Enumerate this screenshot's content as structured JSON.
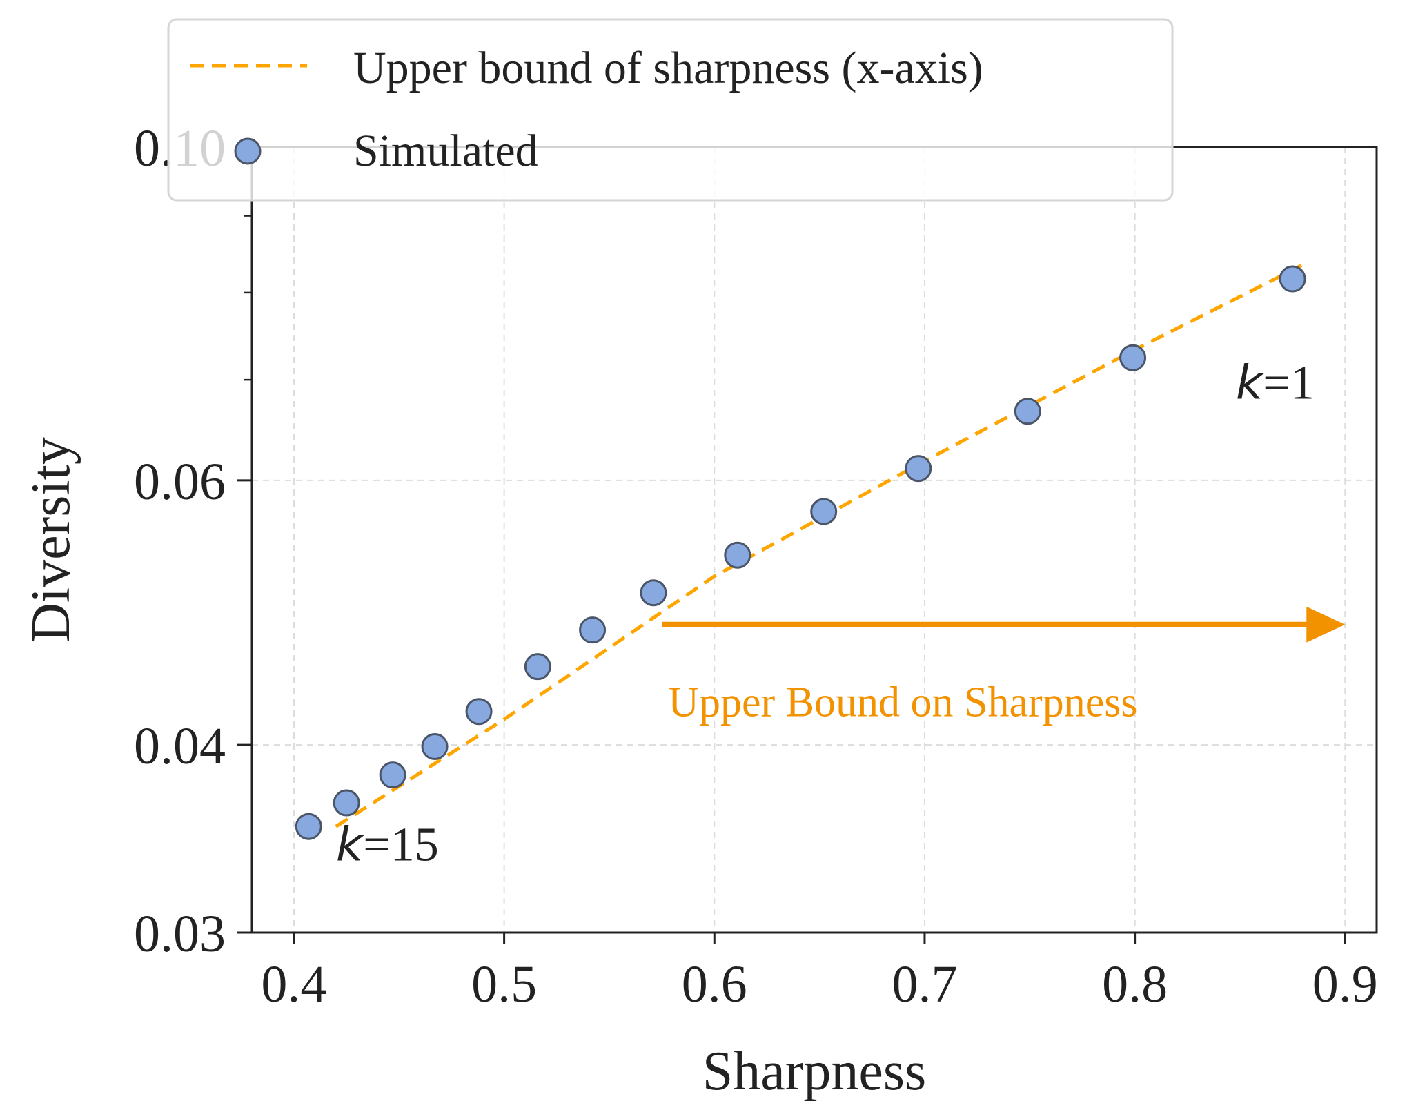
{
  "chart_data": {
    "type": "scatter",
    "title": "",
    "xlabel": "Sharpness",
    "ylabel": "Diversity",
    "xlim": [
      0.38,
      0.915
    ],
    "y_scale": "log",
    "ylim": [
      0.03,
      0.1
    ],
    "xticks": [
      0.4,
      0.5,
      0.6,
      0.7,
      0.8,
      0.9
    ],
    "xtick_labels": [
      "0.4",
      "0.5",
      "0.6",
      "0.7",
      "0.8",
      "0.9"
    ],
    "yticks": [
      0.03,
      0.04,
      0.06,
      0.1
    ],
    "ytick_labels": [
      "0.03",
      "0.04",
      "0.06",
      "0.10"
    ],
    "y_minor_ticks": [
      0.07,
      0.08,
      0.09
    ],
    "grid": true,
    "series": [
      {
        "name": "Upper bound of sharpness (x-axis)",
        "kind": "line",
        "style": "dashed",
        "color": "#ffa500",
        "x": [
          0.42,
          0.5,
          0.6,
          0.7,
          0.8,
          0.88
        ],
        "y": [
          0.0353,
          0.0416,
          0.0518,
          0.0618,
          0.0733,
          0.0835
        ]
      },
      {
        "name": "Simulated",
        "kind": "scatter",
        "color": "#88a8e0",
        "edge_color": "#4a5568",
        "x": [
          0.407,
          0.425,
          0.447,
          0.467,
          0.488,
          0.516,
          0.542,
          0.571,
          0.611,
          0.652,
          0.697,
          0.749,
          0.799,
          0.875
        ],
        "y": [
          0.0353,
          0.0366,
          0.0382,
          0.0399,
          0.0421,
          0.0451,
          0.0477,
          0.0505,
          0.0535,
          0.0572,
          0.0611,
          0.0667,
          0.0724,
          0.0817
        ]
      }
    ],
    "legend": {
      "position": "top-left",
      "entries": [
        "Upper bound of sharpness (x-axis)",
        "Simulated"
      ]
    },
    "annotations": [
      {
        "text": "k=15",
        "italic_part": "k",
        "rest": "=15",
        "x": 0.42,
        "y": 0.0335
      },
      {
        "text": "k=1",
        "italic_part": "k",
        "rest": "=1",
        "x": 0.848,
        "y": 0.068
      },
      {
        "text": "Upper Bound on Sharpness",
        "color": "#f39200",
        "x": 0.578,
        "y": 0.0418
      }
    ],
    "arrow": {
      "x_from": 0.575,
      "x_to": 0.9,
      "y": 0.0481,
      "color": "#f39200"
    }
  }
}
